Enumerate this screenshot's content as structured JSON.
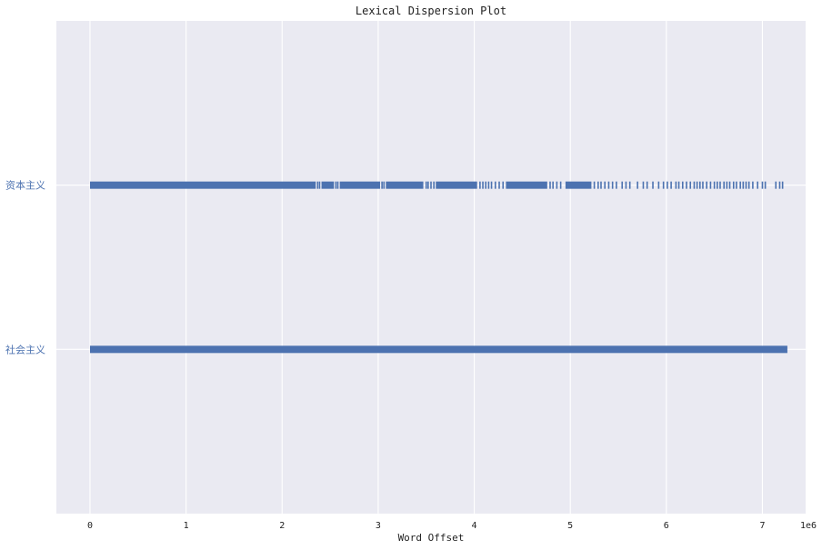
{
  "chart_data": {
    "type": "scatter",
    "title": "Lexical Dispersion Plot",
    "xlabel": "Word Offset",
    "ylabel": "",
    "x_offset_text": "1e6",
    "xlim": [
      -350000,
      7450000
    ],
    "x_ticks": [
      0,
      1000000,
      2000000,
      3000000,
      4000000,
      5000000,
      6000000,
      7000000
    ],
    "x_tick_labels": [
      "0",
      "1",
      "2",
      "3",
      "4",
      "5",
      "6",
      "7"
    ],
    "grid": true,
    "legend": "none",
    "marker": "|",
    "color": "#4c72b0",
    "background": "#eaeaf2",
    "series": [
      {
        "name": "社会主义",
        "ranges": [
          [
            0,
            7260000
          ]
        ],
        "points": []
      },
      {
        "name": "资本主义",
        "ranges": [
          [
            0,
            2350000
          ],
          [
            2410000,
            2540000
          ],
          [
            2600000,
            3020000
          ],
          [
            3080000,
            3470000
          ],
          [
            3600000,
            4030000
          ],
          [
            4330000,
            4760000
          ],
          [
            4950000,
            5220000
          ]
        ],
        "points": [
          2370000,
          2390000,
          2560000,
          2580000,
          3040000,
          3060000,
          3500000,
          3520000,
          3550000,
          3580000,
          4060000,
          4090000,
          4120000,
          4150000,
          4180000,
          4220000,
          4260000,
          4300000,
          4790000,
          4820000,
          4860000,
          4900000,
          5250000,
          5290000,
          5320000,
          5360000,
          5400000,
          5440000,
          5480000,
          5540000,
          5580000,
          5620000,
          5700000,
          5760000,
          5800000,
          5860000,
          5920000,
          5970000,
          6010000,
          6050000,
          6100000,
          6130000,
          6170000,
          6210000,
          6250000,
          6290000,
          6320000,
          6350000,
          6380000,
          6420000,
          6460000,
          6500000,
          6530000,
          6560000,
          6600000,
          6630000,
          6660000,
          6700000,
          6730000,
          6770000,
          6800000,
          6830000,
          6860000,
          6900000,
          6950000,
          7000000,
          7030000,
          7140000,
          7180000,
          7210000
        ]
      }
    ]
  }
}
